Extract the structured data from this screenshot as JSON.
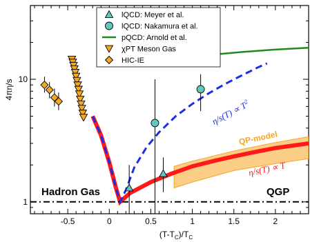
{
  "chart_data": {
    "type": "scatter",
    "xlabel": "(T-T",
    "xlabel_sub": "C",
    "xlabel_div": ")/T",
    "ylabel": "4πη/s",
    "xlim": [
      -0.95,
      2.4
    ],
    "ylim": [
      0.8,
      40
    ],
    "y_scale": "log",
    "x_ticks": [
      -0.5,
      0,
      0.5,
      1,
      1.5,
      2
    ],
    "x_tick_labels": [
      "-0.5",
      "0",
      "0.5",
      "1",
      "1.5",
      "2"
    ],
    "y_ticks": [
      1,
      10
    ],
    "y_tick_labels": [
      "1",
      "10"
    ],
    "legend_position": "top-center",
    "series": [
      {
        "name": "lQCD: Meyer et al.",
        "kind": "points",
        "marker": "triangle",
        "color": "#5fc9c0",
        "points": [
          {
            "x": 0.24,
            "y": 1.3,
            "ylo": 0.8,
            "yhi": 2.0
          },
          {
            "x": 0.65,
            "y": 1.7,
            "ylo": 1.2,
            "yhi": 2.3
          }
        ]
      },
      {
        "name": "lQCD: Nakamura et al.",
        "kind": "points",
        "marker": "circle",
        "color": "#5fc9c0",
        "points": [
          {
            "x": 0.55,
            "y": 4.4,
            "ylo": 0.8,
            "yhi": 10.0
          },
          {
            "x": 1.1,
            "y": 8.3,
            "ylo": 5.5,
            "yhi": 11.0
          }
        ]
      },
      {
        "name": "pQCD: Arnold et al.",
        "kind": "line",
        "color": "#1e8a1e",
        "points": [
          [
            0.4,
            13.2
          ],
          [
            0.8,
            14.6
          ],
          [
            1.2,
            15.8
          ],
          [
            1.6,
            16.7
          ],
          [
            2.0,
            17.5
          ],
          [
            2.4,
            18.1
          ]
        ]
      },
      {
        "name": "χPT Meson Gas",
        "kind": "points",
        "marker": "triangle-down",
        "color": "#f5a623",
        "points": [
          {
            "x": -0.45,
            "y": 14.6
          },
          {
            "x": -0.44,
            "y": 13.8
          },
          {
            "x": -0.43,
            "y": 13.0
          },
          {
            "x": -0.42,
            "y": 12.2
          },
          {
            "x": -0.41,
            "y": 11.4
          },
          {
            "x": -0.4,
            "y": 10.6
          },
          {
            "x": -0.39,
            "y": 9.8
          },
          {
            "x": -0.38,
            "y": 9.0
          },
          {
            "x": -0.37,
            "y": 8.3
          },
          {
            "x": -0.36,
            "y": 7.6
          },
          {
            "x": -0.35,
            "y": 6.9
          },
          {
            "x": -0.34,
            "y": 6.3
          },
          {
            "x": -0.33,
            "y": 5.8
          },
          {
            "x": -0.32,
            "y": 5.3
          },
          {
            "x": -0.31,
            "y": 4.9
          }
        ]
      },
      {
        "name": "HIC-IE",
        "kind": "points",
        "marker": "diamond",
        "color": "#f5a623",
        "points": [
          {
            "x": -0.78,
            "y": 9.0,
            "ylo": 7.8,
            "yhi": 10.5
          },
          {
            "x": -0.72,
            "y": 8.2,
            "ylo": 7.0,
            "yhi": 9.5
          },
          {
            "x": -0.66,
            "y": 7.1,
            "ylo": 6.0,
            "yhi": 8.4
          },
          {
            "x": -0.61,
            "y": 6.6,
            "ylo": 5.6,
            "yhi": 7.8
          }
        ]
      },
      {
        "name": "η/s(T) ∝ T",
        "kind": "line",
        "color": "#ff1a1a",
        "points": [
          [
            -0.2,
            5.0
          ],
          [
            -0.1,
            3.5
          ],
          [
            0.0,
            2.1
          ],
          [
            0.08,
            1.3
          ],
          [
            0.13,
            1.0
          ],
          [
            0.25,
            1.18
          ],
          [
            0.5,
            1.45
          ],
          [
            0.75,
            1.7
          ],
          [
            1.0,
            1.95
          ],
          [
            1.25,
            2.15
          ],
          [
            1.5,
            2.35
          ],
          [
            1.75,
            2.55
          ],
          [
            2.0,
            2.75
          ],
          [
            2.4,
            3.0
          ]
        ]
      },
      {
        "name": "η/s(T) ∝ T²",
        "kind": "line",
        "color": "#1a2ee6",
        "points": [
          [
            -0.2,
            5.0
          ],
          [
            -0.1,
            3.5
          ],
          [
            0.0,
            2.1
          ],
          [
            0.08,
            1.3
          ],
          [
            0.13,
            1.0
          ],
          [
            0.2,
            1.25
          ],
          [
            0.3,
            1.9
          ],
          [
            0.45,
            2.8
          ],
          [
            0.6,
            3.7
          ],
          [
            0.8,
            5.0
          ],
          [
            1.0,
            6.3
          ],
          [
            1.2,
            7.7
          ],
          [
            1.4,
            9.2
          ],
          [
            1.6,
            10.8
          ],
          [
            1.8,
            12.6
          ],
          [
            1.9,
            13.5
          ]
        ]
      },
      {
        "name": "QP-model",
        "kind": "band",
        "color": "#f5a623",
        "upper": [
          [
            0.78,
            1.95
          ],
          [
            1.0,
            2.15
          ],
          [
            1.5,
            2.6
          ],
          [
            2.0,
            3.05
          ],
          [
            2.4,
            3.4
          ]
        ],
        "lower": [
          [
            0.78,
            1.3
          ],
          [
            1.0,
            1.45
          ],
          [
            1.5,
            1.8
          ],
          [
            2.0,
            2.05
          ],
          [
            2.4,
            2.25
          ]
        ]
      }
    ],
    "reference_line": {
      "y": 1,
      "style": "dash-dot",
      "color": "#000000"
    },
    "annotations": {
      "hadron_gas": "Hadron Gas",
      "qgp": "QGP",
      "qp_model": "QP-model",
      "eta_T": "η/s(T) ∝ T",
      "eta_T2_base": "η/s(T) ∝ T",
      "eta_T2_exp": "2"
    }
  }
}
